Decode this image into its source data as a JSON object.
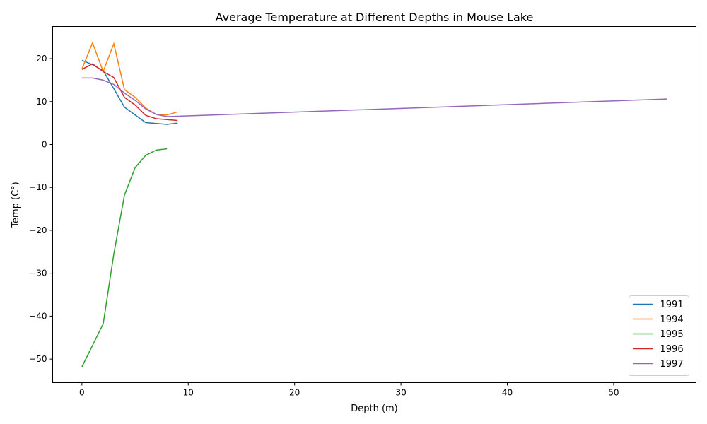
{
  "chart_data": {
    "type": "line",
    "title": "Average Temperature at Different Depths in Mouse Lake",
    "xlabel": "Depth (m)",
    "ylabel": "Temp (C°)",
    "xlim": [
      -2.75,
      57.75
    ],
    "ylim": [
      -55.5,
      27.5
    ],
    "xticks": [
      0,
      10,
      20,
      30,
      40,
      50
    ],
    "yticks": [
      -50,
      -40,
      -30,
      -20,
      -10,
      0,
      10,
      20
    ],
    "grid": false,
    "legend_position": "lower-right",
    "series": [
      {
        "name": "1991",
        "color": "#1f77b4",
        "x": [
          0,
          1,
          2,
          3,
          4,
          5,
          6,
          7,
          8,
          9
        ],
        "y": [
          19.6,
          18.6,
          17.2,
          13.0,
          8.7,
          6.9,
          5.1,
          4.9,
          4.7,
          5.0
        ]
      },
      {
        "name": "1994",
        "color": "#ff7f0e",
        "x": [
          0,
          1,
          2,
          3,
          4,
          5,
          6,
          7,
          8,
          9
        ],
        "y": [
          17.6,
          23.7,
          17.0,
          23.5,
          12.8,
          11.0,
          8.5,
          7.0,
          6.9,
          7.6
        ]
      },
      {
        "name": "1995",
        "color": "#2ca02c",
        "x": [
          0,
          1,
          2,
          3,
          4,
          5,
          6,
          7,
          8
        ],
        "y": [
          -51.8,
          -46.8,
          -41.8,
          -25.5,
          -11.8,
          -5.4,
          -2.5,
          -1.3,
          -1.0
        ]
      },
      {
        "name": "1996",
        "color": "#d62728",
        "x": [
          0,
          1,
          2,
          3,
          4,
          5,
          6,
          7,
          8,
          9
        ],
        "y": [
          17.5,
          18.8,
          17.0,
          15.6,
          11.0,
          9.2,
          6.8,
          6.0,
          5.8,
          5.6
        ]
      },
      {
        "name": "1997",
        "color": "#9467bd",
        "x": [
          0,
          1,
          2,
          3,
          4,
          5,
          6,
          7,
          8,
          55
        ],
        "y": [
          15.5,
          15.5,
          15.0,
          14.0,
          12.0,
          10.3,
          8.3,
          7.0,
          6.5,
          10.6
        ]
      }
    ]
  }
}
